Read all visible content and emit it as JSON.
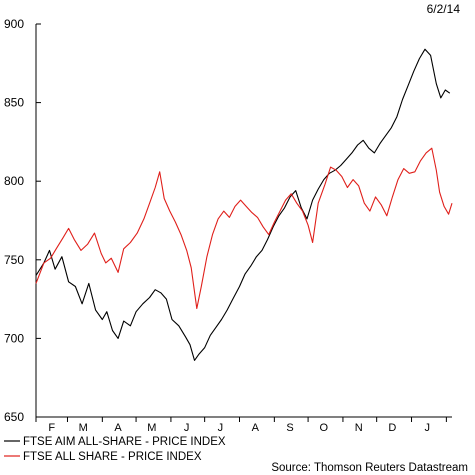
{
  "header": {
    "date": "6/2/14"
  },
  "source": "Source: Thomson Reuters Datastream",
  "chart_data": {
    "type": "line",
    "title": "",
    "xlabel": "",
    "ylabel": "",
    "ylim": [
      650,
      900
    ],
    "yticks": [
      650,
      700,
      750,
      800,
      850,
      900
    ],
    "xlim": [
      "2013-02-01",
      "2014-02-06"
    ],
    "month_labels": [
      {
        "label": "F",
        "date": "2013-02-15"
      },
      {
        "label": "M",
        "date": "2013-03-15"
      },
      {
        "label": "A",
        "date": "2013-04-15"
      },
      {
        "label": "M",
        "date": "2013-05-15"
      },
      {
        "label": "J",
        "date": "2013-06-15"
      },
      {
        "label": "J",
        "date": "2013-07-15"
      },
      {
        "label": "A",
        "date": "2013-08-15"
      },
      {
        "label": "S",
        "date": "2013-09-15"
      },
      {
        "label": "O",
        "date": "2013-10-15"
      },
      {
        "label": "N",
        "date": "2013-11-15"
      },
      {
        "label": "D",
        "date": "2013-12-15"
      },
      {
        "label": "J",
        "date": "2014-01-15"
      }
    ],
    "grid": false,
    "legend_position": "bottom-left",
    "series": [
      {
        "name": "FTSE AIM ALL-SHARE - PRICE INDEX",
        "color": "#000000",
        "points": [
          [
            "2013-02-01",
            740
          ],
          [
            "2013-02-08",
            748
          ],
          [
            "2013-02-13",
            756
          ],
          [
            "2013-02-18",
            744
          ],
          [
            "2013-02-24",
            752
          ],
          [
            "2013-03-02",
            736
          ],
          [
            "2013-03-08",
            733
          ],
          [
            "2013-03-14",
            722
          ],
          [
            "2013-03-20",
            735
          ],
          [
            "2013-03-26",
            718
          ],
          [
            "2013-04-01",
            712
          ],
          [
            "2013-04-05",
            717
          ],
          [
            "2013-04-10",
            705
          ],
          [
            "2013-04-15",
            700
          ],
          [
            "2013-04-20",
            711
          ],
          [
            "2013-04-26",
            708
          ],
          [
            "2013-05-01",
            717
          ],
          [
            "2013-05-07",
            722
          ],
          [
            "2013-05-13",
            726
          ],
          [
            "2013-05-18",
            731
          ],
          [
            "2013-05-23",
            729
          ],
          [
            "2013-05-28",
            725
          ],
          [
            "2013-06-02",
            712
          ],
          [
            "2013-06-08",
            708
          ],
          [
            "2013-06-14",
            701
          ],
          [
            "2013-06-18",
            696
          ],
          [
            "2013-06-22",
            686
          ],
          [
            "2013-06-26",
            690
          ],
          [
            "2013-07-01",
            694
          ],
          [
            "2013-07-06",
            702
          ],
          [
            "2013-07-11",
            707
          ],
          [
            "2013-07-16",
            712
          ],
          [
            "2013-07-21",
            718
          ],
          [
            "2013-07-26",
            725
          ],
          [
            "2013-08-01",
            733
          ],
          [
            "2013-08-06",
            741
          ],
          [
            "2013-08-11",
            746
          ],
          [
            "2013-08-16",
            752
          ],
          [
            "2013-08-21",
            756
          ],
          [
            "2013-08-26",
            763
          ],
          [
            "2013-08-31",
            771
          ],
          [
            "2013-09-05",
            778
          ],
          [
            "2013-09-10",
            783
          ],
          [
            "2013-09-15",
            790
          ],
          [
            "2013-09-20",
            794
          ],
          [
            "2013-09-25",
            783
          ],
          [
            "2013-09-30",
            776
          ],
          [
            "2013-10-05",
            788
          ],
          [
            "2013-10-10",
            795
          ],
          [
            "2013-10-15",
            801
          ],
          [
            "2013-10-20",
            805
          ],
          [
            "2013-10-25",
            807
          ],
          [
            "2013-10-30",
            810
          ],
          [
            "2013-11-04",
            814
          ],
          [
            "2013-11-09",
            818
          ],
          [
            "2013-11-14",
            823
          ],
          [
            "2013-11-19",
            826
          ],
          [
            "2013-11-24",
            821
          ],
          [
            "2013-11-29",
            818
          ],
          [
            "2013-12-04",
            824
          ],
          [
            "2013-12-09",
            829
          ],
          [
            "2013-12-14",
            834
          ],
          [
            "2013-12-19",
            841
          ],
          [
            "2013-12-24",
            852
          ],
          [
            "2013-12-29",
            861
          ],
          [
            "2014-01-03",
            870
          ],
          [
            "2014-01-08",
            878
          ],
          [
            "2014-01-13",
            884
          ],
          [
            "2014-01-18",
            880
          ],
          [
            "2014-01-23",
            862
          ],
          [
            "2014-01-27",
            853
          ],
          [
            "2014-01-31",
            858
          ],
          [
            "2014-02-04",
            856
          ]
        ]
      },
      {
        "name": "FTSE ALL SHARE - PRICE INDEX",
        "color": "#e0201b",
        "points": [
          [
            "2013-02-01",
            735
          ],
          [
            "2013-02-08",
            748
          ],
          [
            "2013-02-14",
            751
          ],
          [
            "2013-02-19",
            757
          ],
          [
            "2013-02-25",
            764
          ],
          [
            "2013-03-02",
            770
          ],
          [
            "2013-03-07",
            763
          ],
          [
            "2013-03-13",
            756
          ],
          [
            "2013-03-19",
            760
          ],
          [
            "2013-03-25",
            767
          ],
          [
            "2013-03-31",
            754
          ],
          [
            "2013-04-04",
            748
          ],
          [
            "2013-04-09",
            751
          ],
          [
            "2013-04-15",
            742
          ],
          [
            "2013-04-20",
            757
          ],
          [
            "2013-04-26",
            761
          ],
          [
            "2013-05-02",
            767
          ],
          [
            "2013-05-08",
            776
          ],
          [
            "2013-05-13",
            786
          ],
          [
            "2013-05-18",
            796
          ],
          [
            "2013-05-22",
            806
          ],
          [
            "2013-05-26",
            789
          ],
          [
            "2013-05-31",
            781
          ],
          [
            "2013-06-05",
            774
          ],
          [
            "2013-06-10",
            766
          ],
          [
            "2013-06-15",
            756
          ],
          [
            "2013-06-19",
            745
          ],
          [
            "2013-06-24",
            719
          ],
          [
            "2013-06-28",
            733
          ],
          [
            "2013-07-03",
            752
          ],
          [
            "2013-07-08",
            766
          ],
          [
            "2013-07-13",
            776
          ],
          [
            "2013-07-18",
            781
          ],
          [
            "2013-07-23",
            777
          ],
          [
            "2013-07-28",
            784
          ],
          [
            "2013-08-02",
            788
          ],
          [
            "2013-08-07",
            784
          ],
          [
            "2013-08-12",
            780
          ],
          [
            "2013-08-17",
            777
          ],
          [
            "2013-08-22",
            771
          ],
          [
            "2013-08-27",
            766
          ],
          [
            "2013-09-01",
            774
          ],
          [
            "2013-09-06",
            781
          ],
          [
            "2013-09-11",
            788
          ],
          [
            "2013-09-16",
            792
          ],
          [
            "2013-09-21",
            786
          ],
          [
            "2013-09-26",
            781
          ],
          [
            "2013-10-01",
            772
          ],
          [
            "2013-10-05",
            761
          ],
          [
            "2013-10-10",
            786
          ],
          [
            "2013-10-16",
            798
          ],
          [
            "2013-10-21",
            809
          ],
          [
            "2013-10-26",
            807
          ],
          [
            "2013-10-31",
            803
          ],
          [
            "2013-11-05",
            796
          ],
          [
            "2013-11-10",
            801
          ],
          [
            "2013-11-15",
            797
          ],
          [
            "2013-11-20",
            786
          ],
          [
            "2013-11-25",
            781
          ],
          [
            "2013-11-30",
            790
          ],
          [
            "2013-12-05",
            785
          ],
          [
            "2013-12-10",
            778
          ],
          [
            "2013-12-15",
            790
          ],
          [
            "2013-12-20",
            801
          ],
          [
            "2013-12-25",
            808
          ],
          [
            "2013-12-30",
            805
          ],
          [
            "2014-01-04",
            806
          ],
          [
            "2014-01-09",
            813
          ],
          [
            "2014-01-14",
            818
          ],
          [
            "2014-01-19",
            821
          ],
          [
            "2014-01-23",
            807
          ],
          [
            "2014-01-26",
            793
          ],
          [
            "2014-01-30",
            784
          ],
          [
            "2014-02-03",
            779
          ],
          [
            "2014-02-06",
            786
          ]
        ]
      }
    ]
  }
}
